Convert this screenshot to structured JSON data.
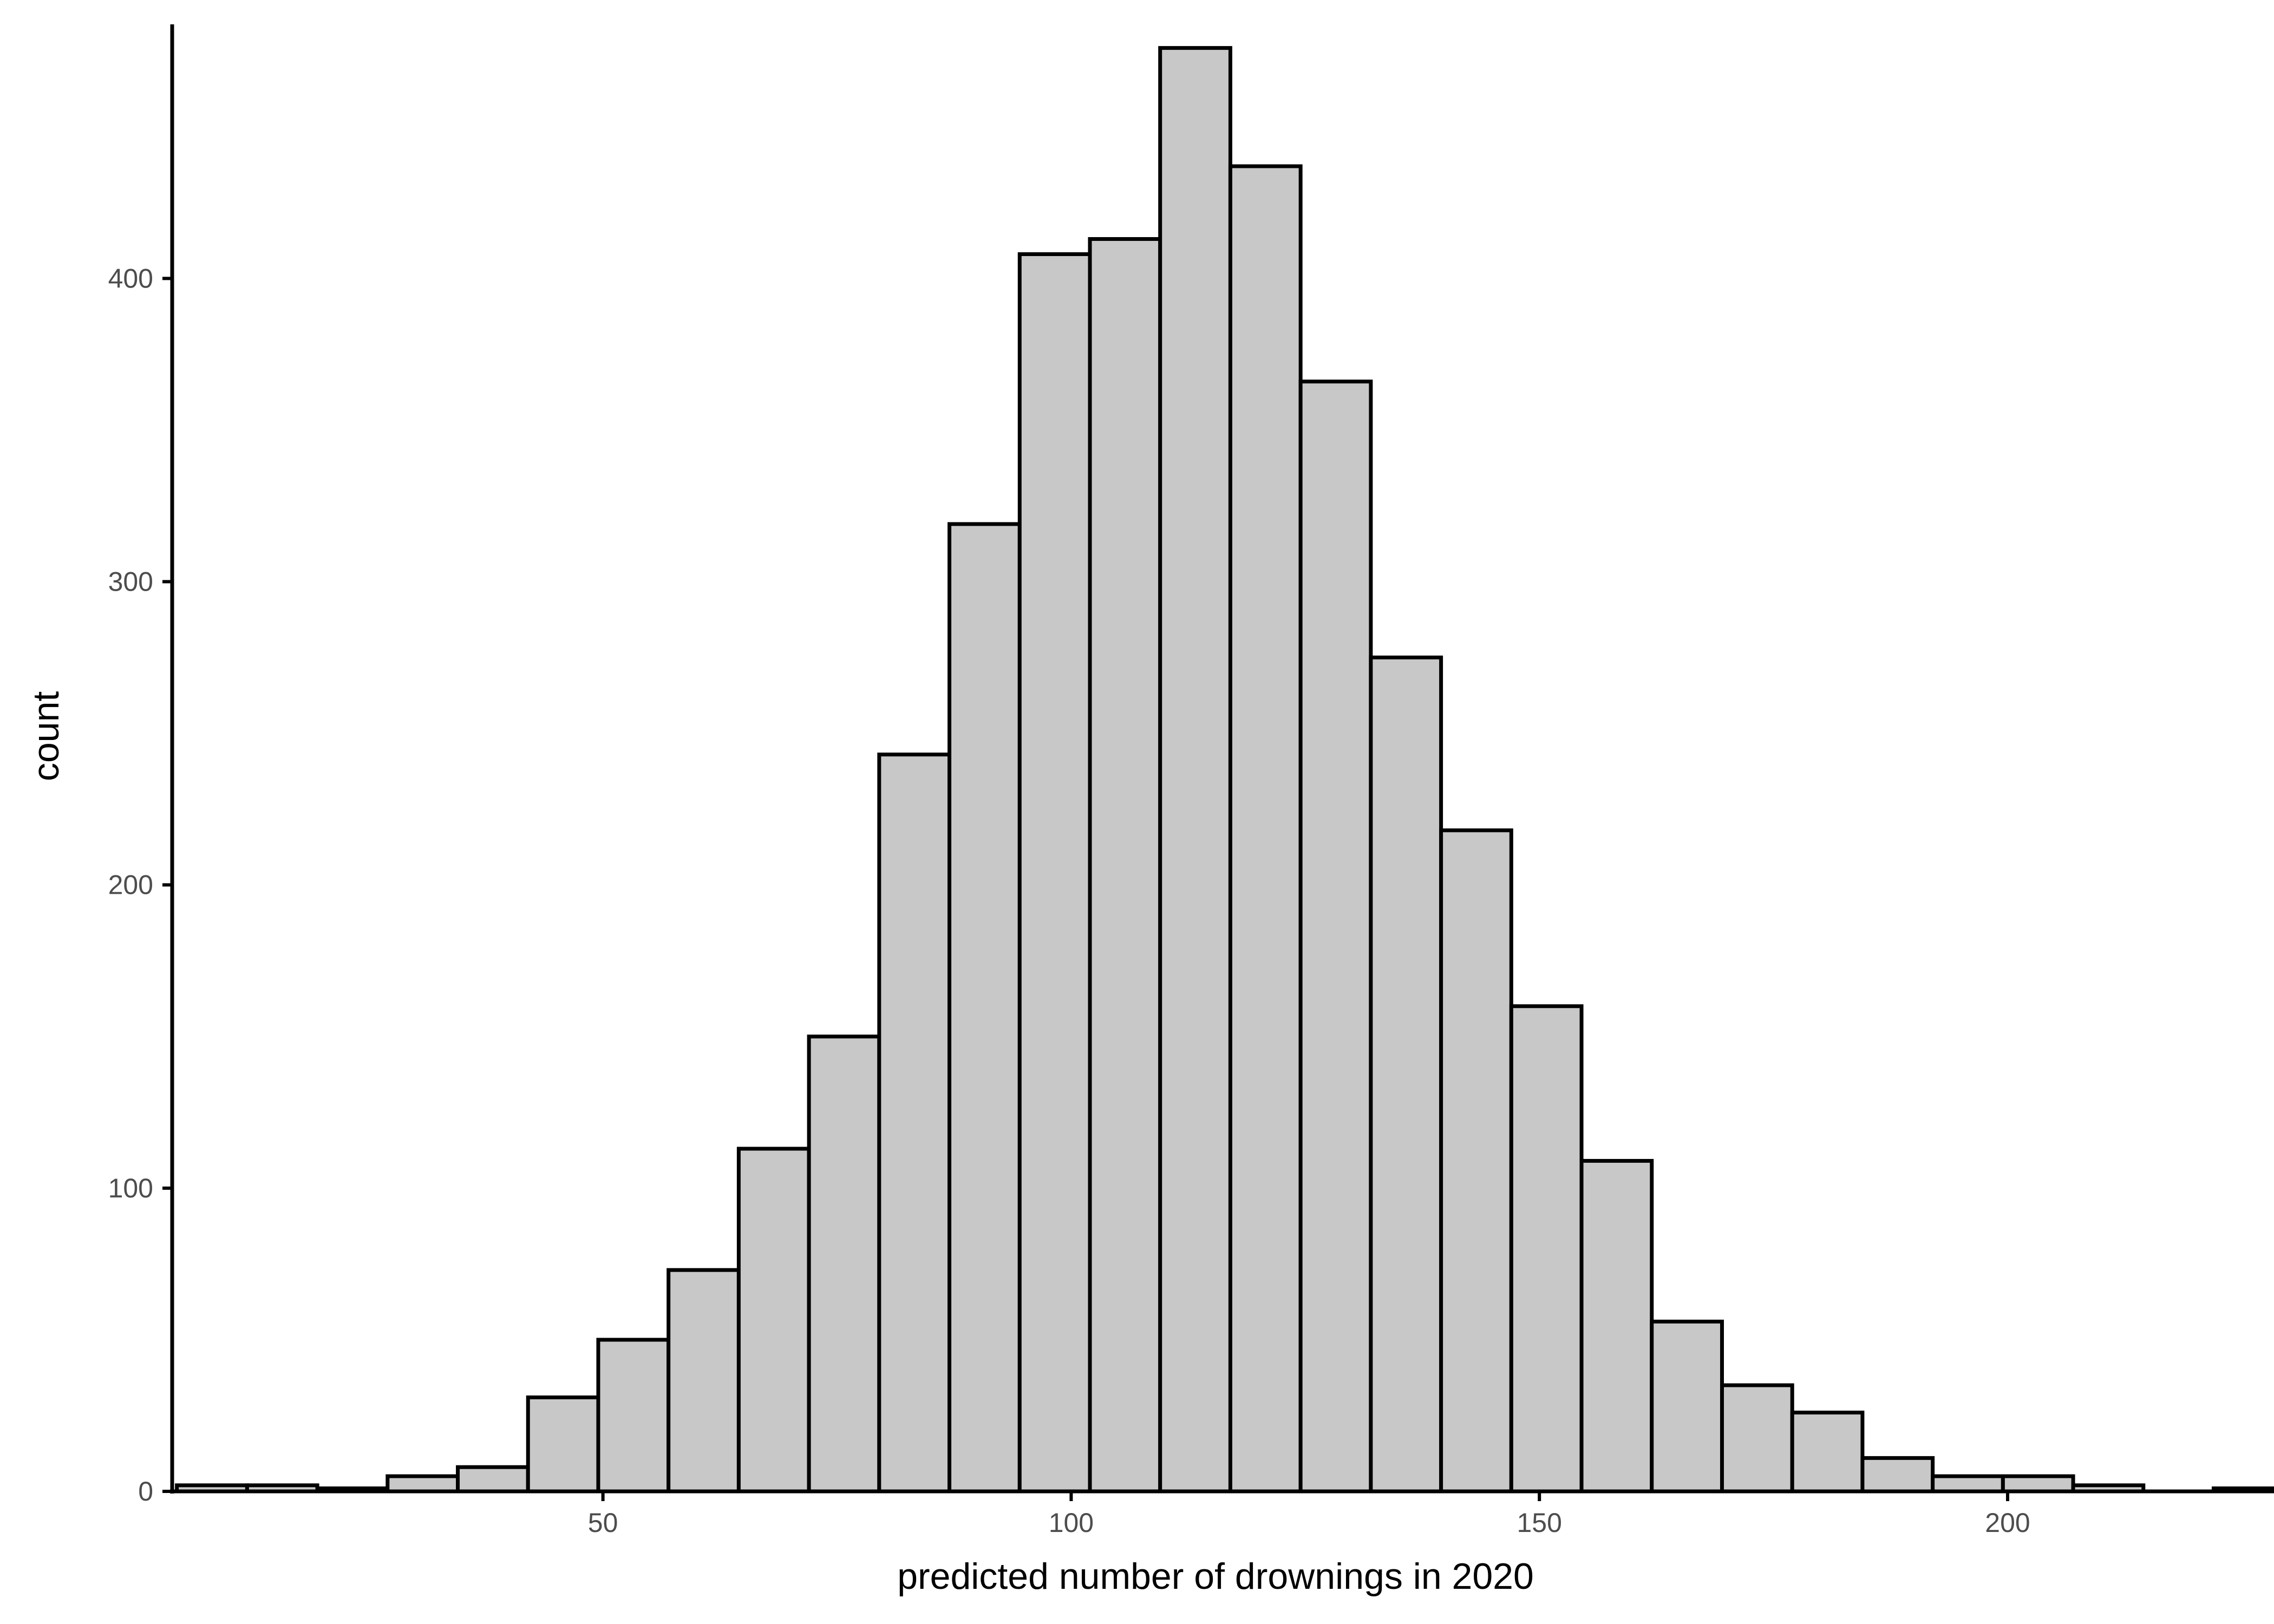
{
  "chart_data": {
    "type": "bar",
    "subtype": "histogram",
    "xlabel": "predicted number of drownings in 2020",
    "ylabel": "count",
    "xlim": [
      4,
      227
    ],
    "ylim": [
      0,
      482
    ],
    "x_ticks": [
      50,
      100,
      150,
      200
    ],
    "y_ticks": [
      0,
      100,
      200,
      300,
      400
    ],
    "grid": false,
    "bin_width": 7.5,
    "bins": [
      {
        "start": 4.5,
        "count": 2
      },
      {
        "start": 12.0,
        "count": 2
      },
      {
        "start": 19.5,
        "count": 1
      },
      {
        "start": 27.0,
        "count": 5
      },
      {
        "start": 34.5,
        "count": 8
      },
      {
        "start": 42.0,
        "count": 31
      },
      {
        "start": 49.5,
        "count": 50
      },
      {
        "start": 57.0,
        "count": 73
      },
      {
        "start": 64.5,
        "count": 113
      },
      {
        "start": 72.0,
        "count": 150
      },
      {
        "start": 79.5,
        "count": 243
      },
      {
        "start": 87.0,
        "count": 319
      },
      {
        "start": 94.5,
        "count": 408
      },
      {
        "start": 102.0,
        "count": 413
      },
      {
        "start": 109.5,
        "count": 476
      },
      {
        "start": 117.0,
        "count": 437
      },
      {
        "start": 124.5,
        "count": 366
      },
      {
        "start": 132.0,
        "count": 275
      },
      {
        "start": 139.5,
        "count": 218
      },
      {
        "start": 147.0,
        "count": 160
      },
      {
        "start": 154.5,
        "count": 109
      },
      {
        "start": 162.0,
        "count": 56
      },
      {
        "start": 169.5,
        "count": 35
      },
      {
        "start": 177.0,
        "count": 26
      },
      {
        "start": 184.5,
        "count": 11
      },
      {
        "start": 192.0,
        "count": 5
      },
      {
        "start": 199.5,
        "count": 5
      },
      {
        "start": 207.0,
        "count": 2
      },
      {
        "start": 214.5,
        "count": 0
      },
      {
        "start": 222.0,
        "count": 1
      }
    ],
    "colors": {
      "bar_fill": "#c8c8c8",
      "bar_outline": "#000000",
      "tick_text": "#4d4d4d",
      "axis": "#000000"
    }
  }
}
